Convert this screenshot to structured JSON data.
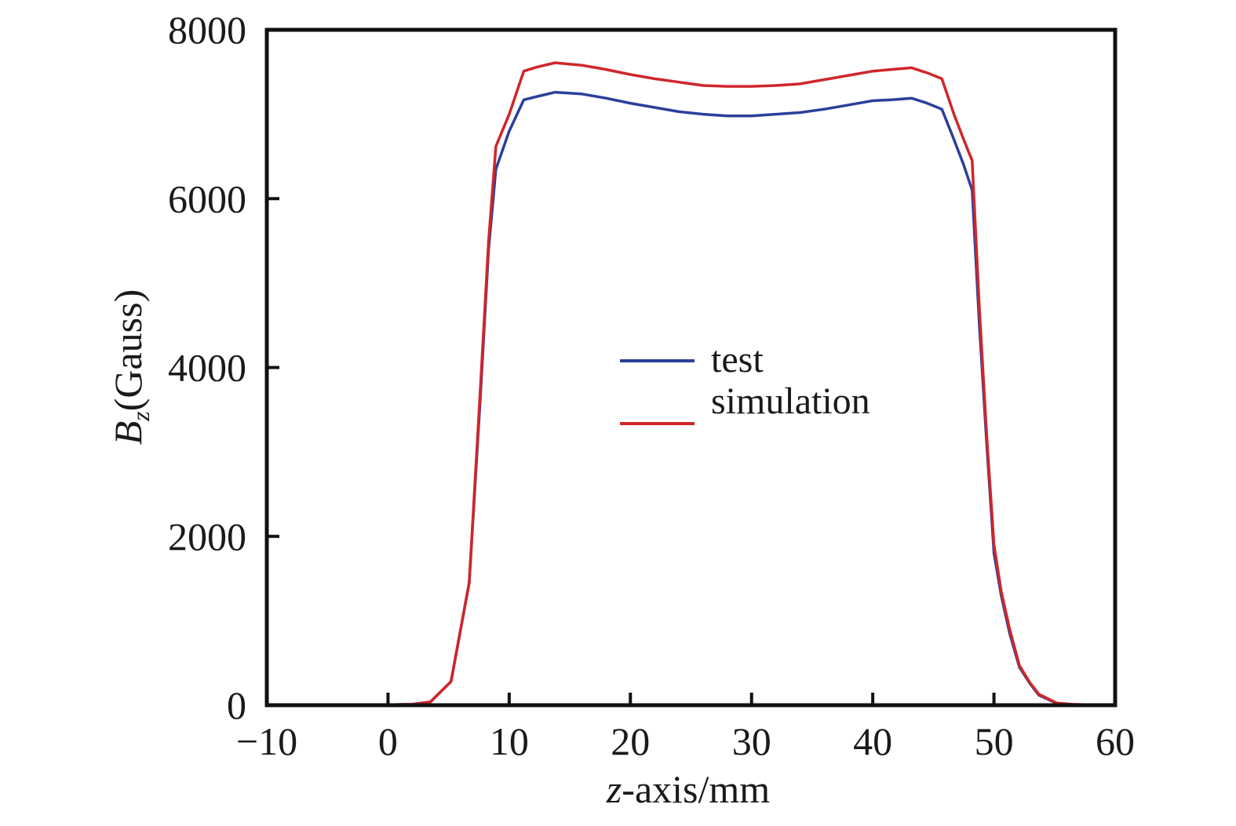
{
  "chart_data": {
    "type": "line",
    "title": "",
    "xlabel_italic": "z",
    "xlabel_rest": "-axis/mm",
    "ylabel_italic": "B",
    "ylabel_sub": "z",
    "ylabel_rest": "(Gauss)",
    "xlim": [
      -10,
      60
    ],
    "ylim": [
      0,
      8000
    ],
    "xticks": [
      -10,
      0,
      10,
      20,
      30,
      40,
      50,
      60
    ],
    "xtick_labels": [
      "−10",
      "0",
      "10",
      "20",
      "30",
      "40",
      "50",
      "60"
    ],
    "yticks": [
      0,
      2000,
      4000,
      6000,
      8000
    ],
    "ytick_labels": [
      "0",
      "2000",
      "4000",
      "6000",
      "8000"
    ],
    "grid": false,
    "legend_position": "center",
    "series": [
      {
        "name": "test",
        "color": "#2b3f9c",
        "x": [
          -10,
          -6,
          -2,
          0,
          2,
          3.5,
          5.2,
          6.7,
          7.6,
          8.3,
          8.9,
          10,
          11.2,
          12.3,
          13.8,
          16,
          18,
          20,
          22,
          24,
          26,
          28,
          30,
          32,
          34,
          36,
          38,
          40,
          41.5,
          43.2,
          44.5,
          45.7,
          46.7,
          47.5,
          48.2,
          48.8,
          49.4,
          50,
          50.6,
          51.3,
          52.1,
          53,
          53.7,
          55.2,
          56.5,
          58,
          60
        ],
        "y": [
          0,
          2,
          4,
          6,
          10,
          40,
          280,
          1450,
          3600,
          5400,
          6350,
          6800,
          7170,
          7210,
          7260,
          7240,
          7190,
          7130,
          7080,
          7030,
          7000,
          6980,
          6980,
          7000,
          7020,
          7060,
          7110,
          7160,
          7170,
          7190,
          7130,
          7060,
          6700,
          6400,
          6100,
          4500,
          3100,
          1800,
          1300,
          850,
          450,
          250,
          120,
          20,
          8,
          4,
          2
        ]
      },
      {
        "name": "simulation",
        "color": "#d0262a",
        "x": [
          -10,
          -6,
          -2,
          0,
          2,
          3.5,
          5.2,
          6.7,
          7.6,
          8.3,
          8.9,
          10,
          11.2,
          12.3,
          13.8,
          16,
          18,
          20,
          22,
          24,
          26,
          28,
          30,
          32,
          34,
          36,
          38,
          40,
          41.5,
          43.2,
          44.5,
          45.7,
          46.7,
          47.5,
          48.2,
          48.8,
          49.4,
          50,
          50.6,
          51.3,
          52.1,
          53,
          53.7,
          55.2,
          56.5,
          58,
          60
        ],
        "y": [
          0,
          2,
          4,
          6,
          10,
          40,
          280,
          1450,
          3700,
          5500,
          6620,
          7000,
          7510,
          7560,
          7610,
          7580,
          7530,
          7470,
          7420,
          7380,
          7340,
          7330,
          7330,
          7340,
          7360,
          7410,
          7460,
          7510,
          7530,
          7550,
          7490,
          7420,
          7000,
          6700,
          6450,
          4700,
          3200,
          1900,
          1350,
          900,
          470,
          260,
          130,
          25,
          10,
          5,
          3
        ]
      }
    ]
  }
}
